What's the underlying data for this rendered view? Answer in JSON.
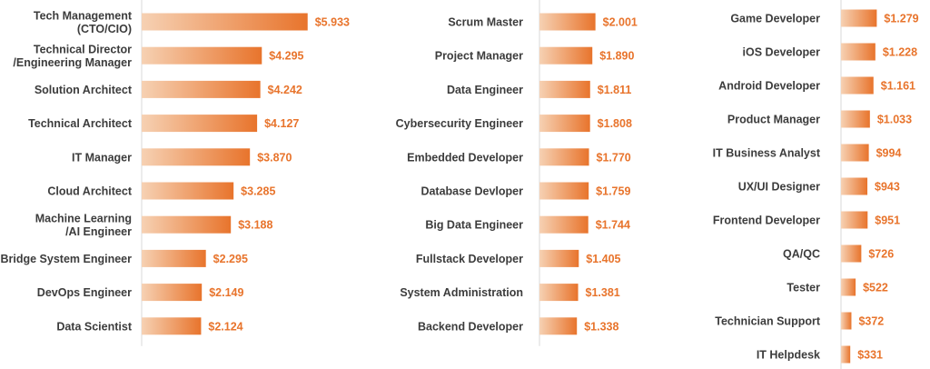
{
  "chart_data": [
    {
      "type": "bar",
      "orientation": "horizontal",
      "categories": [
        "Tech Management\n(CTO/CIO)",
        "Technical Director\n/Engineering Manager",
        "Solution Architect",
        "Technical Architect",
        "IT Manager",
        "Cloud Architect",
        "Machine Learning\n/AI Engineer",
        "Bridge System Engineer",
        "DevOps Engineer",
        "Data Scientist"
      ],
      "values": [
        5933,
        4295,
        4242,
        4127,
        3870,
        3285,
        3188,
        2295,
        2149,
        2124
      ],
      "labels": [
        "$5.933",
        "$4.295",
        "$4.242",
        "$4.127",
        "$3.870",
        "$3.285",
        "$3.188",
        "$2.295",
        "$2.149",
        "$2.124"
      ]
    },
    {
      "type": "bar",
      "orientation": "horizontal",
      "categories": [
        "Scrum Master",
        "Project Manager",
        "Data Engineer",
        "Cybersecurity Engineer",
        "Embedded Developer",
        "Database Devloper",
        "Big Data Engineer",
        "Fullstack Developer",
        "System Administration",
        "Backend Developer"
      ],
      "values": [
        2001,
        1890,
        1811,
        1808,
        1770,
        1759,
        1744,
        1405,
        1381,
        1338
      ],
      "labels": [
        "$2.001",
        "$1.890",
        "$1.811",
        "$1.808",
        "$1.770",
        "$1.759",
        "$1.744",
        "$1.405",
        "$1.381",
        "$1.338"
      ]
    },
    {
      "type": "bar",
      "orientation": "horizontal",
      "categories": [
        "Game Developer",
        "iOS Developer",
        "Android Developer",
        "Product Manager",
        "IT Business Analyst",
        "UX/UI Designer",
        "Frontend Developer",
        "QA/QC",
        "Tester",
        "Technician Support",
        "IT Helpdesk"
      ],
      "values": [
        1279,
        1228,
        1161,
        1033,
        994,
        943,
        951,
        726,
        522,
        372,
        331
      ],
      "labels": [
        "$1.279",
        "$1.228",
        "$1.161",
        "$1.033",
        "$994",
        "$943",
        "$951",
        "$726",
        "$522",
        "$372",
        "$331"
      ]
    }
  ],
  "colors": {
    "bar_start": "#f6d1b3",
    "bar_end": "#e8742c",
    "value_text": "#e8742c",
    "label_text": "#3c3c3c"
  }
}
